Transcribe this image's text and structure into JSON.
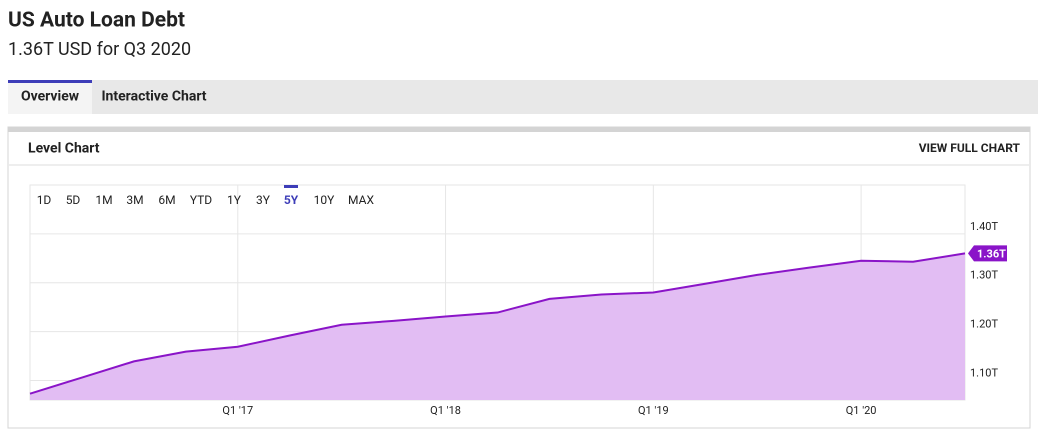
{
  "header": {
    "title": "US Auto Loan Debt",
    "subtitle": "1.36T USD for Q3 2020"
  },
  "tabs": [
    "Overview",
    "Interactive Chart"
  ],
  "active_tab": 0,
  "panel": {
    "title": "Level Chart",
    "link": "VIEW FULL CHART"
  },
  "ranges": [
    "1D",
    "5D",
    "1M",
    "3M",
    "6M",
    "YTD",
    "1Y",
    "3Y",
    "5Y",
    "10Y",
    "MAX"
  ],
  "active_range": 8,
  "chart_data": {
    "type": "area",
    "x": [
      2016,
      2016.25,
      2016.5,
      2016.75,
      2017,
      2017.25,
      2017.5,
      2017.75,
      2018,
      2018.25,
      2018.5,
      2018.75,
      2019,
      2019.25,
      2019.5,
      2019.75,
      2020,
      2020.25,
      2020.5
    ],
    "values": [
      1.073,
      1.106,
      1.139,
      1.159,
      1.169,
      1.192,
      1.214,
      1.222,
      1.231,
      1.239,
      1.267,
      1.276,
      1.28,
      1.298,
      1.316,
      1.331,
      1.345,
      1.343,
      1.36
    ],
    "value_labels": [
      null,
      null,
      null,
      null,
      null,
      null,
      null,
      null,
      null,
      null,
      null,
      null,
      null,
      null,
      null,
      null,
      null,
      null,
      "1.36T"
    ],
    "color": "#8a14c8",
    "fill_color": "#e2bdf3",
    "xlim": [
      2016,
      2020.5
    ],
    "xticks": [
      {
        "value": 2017,
        "label": "Q1 '17"
      },
      {
        "value": 2018,
        "label": "Q1 '18"
      },
      {
        "value": 2019,
        "label": "Q1 '19"
      },
      {
        "value": 2020,
        "label": "Q1 '20"
      }
    ],
    "ylim": [
      1.06,
      1.5
    ],
    "yticks": [
      {
        "value": 1.1,
        "label": "1.10T"
      },
      {
        "value": 1.2,
        "label": "1.20T"
      },
      {
        "value": 1.3,
        "label": "1.30T"
      },
      {
        "value": 1.4,
        "label": "1.40T"
      }
    ],
    "grid": true
  }
}
